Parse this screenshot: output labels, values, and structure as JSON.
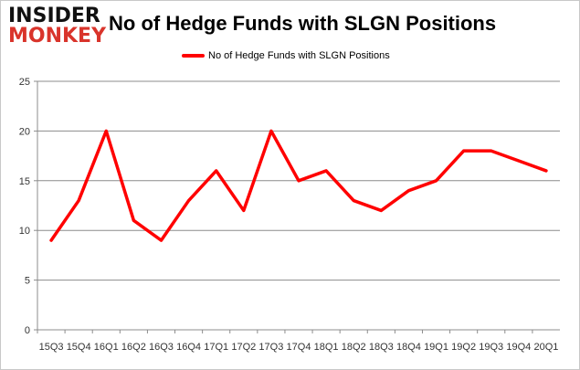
{
  "logo": {
    "line1": "INSIDER",
    "line2": "MONKEY"
  },
  "chart_data": {
    "type": "line",
    "title": "No of Hedge Funds with SLGN Positions",
    "categories": [
      "15Q3",
      "15Q4",
      "16Q1",
      "16Q2",
      "16Q3",
      "16Q4",
      "17Q1",
      "17Q2",
      "17Q3",
      "17Q4",
      "18Q1",
      "18Q2",
      "18Q3",
      "18Q4",
      "19Q1",
      "19Q2",
      "19Q3",
      "19Q4",
      "20Q1"
    ],
    "series": [
      {
        "name": "No of Hedge Funds with SLGN Positions",
        "color": "#ff0000",
        "values": [
          9,
          13,
          20,
          11,
          9,
          13,
          16,
          12,
          20,
          15,
          16,
          13,
          12,
          14,
          15,
          18,
          18,
          17,
          16
        ]
      }
    ],
    "ylim": [
      0,
      25
    ],
    "yticks": [
      0,
      5,
      10,
      15,
      20,
      25
    ],
    "grid": true,
    "legend": "top-center"
  }
}
